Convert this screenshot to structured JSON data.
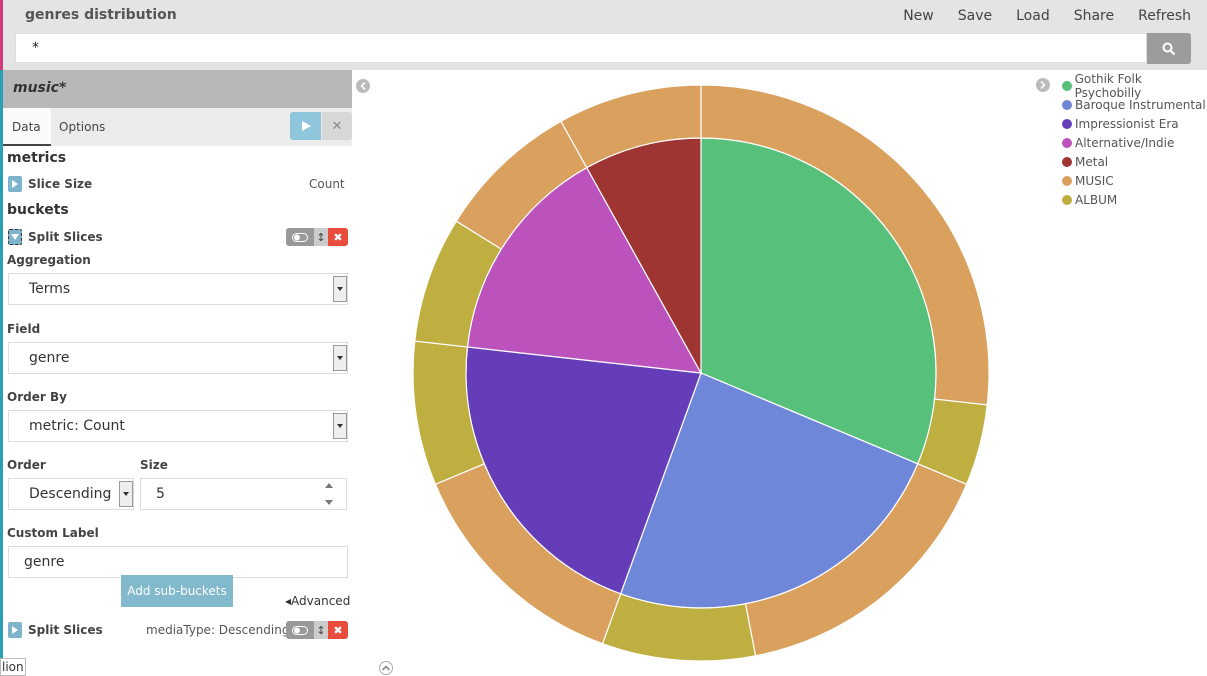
{
  "app_title": "genres distribution",
  "top_menu": [
    "New",
    "Save",
    "Load",
    "Share",
    "Refresh"
  ],
  "query": {
    "value": "*"
  },
  "vis": {
    "name": "music*",
    "tabs": [
      "Data",
      "Options"
    ]
  },
  "metrics": {
    "heading": "metrics",
    "item_label": "Slice Size",
    "item_value": "Count"
  },
  "buckets": {
    "heading": "buckets",
    "split_label": "Split Slices",
    "aggregation_label": "Aggregation",
    "aggregation_value": "Terms",
    "field_label": "Field",
    "field_value": "genre",
    "order_by_label": "Order By",
    "order_by_value": "metric: Count",
    "order_label": "Order",
    "order_value": "Descending",
    "size_label": "Size",
    "size_value": "5",
    "custom_label_label": "Custom Label",
    "custom_label_value": "genre",
    "advanced_label": "Advanced",
    "second_split_label": "Split Slices",
    "second_split_summary": "mediaType: Descending",
    "add_button": "Add sub-buckets"
  },
  "tooltip_text": "lion",
  "legend": [
    {
      "label": "Gothik Folk Psychobilly",
      "color": "#57c17b"
    },
    {
      "label": "Baroque Instrumental",
      "color": "#6f87d8"
    },
    {
      "label": "Impressionist Era",
      "color": "#663db8"
    },
    {
      "label": "Alternative/Indie",
      "color": "#bc52bc"
    },
    {
      "label": "Metal",
      "color": "#9e3533"
    },
    {
      "label": "MUSIC",
      "color": "#daa05d"
    },
    {
      "label": "ALBUM",
      "color": "#bfaf40"
    }
  ],
  "chart_data": {
    "type": "pie",
    "inner": {
      "categories": [
        "Gothik Folk Psychobilly",
        "Baroque Instrumental",
        "Impressionist Era",
        "Alternative/Indie",
        "Metal"
      ],
      "values": [
        31,
        24,
        21,
        15,
        8
      ],
      "colors": [
        "#57c17b",
        "#6f87d8",
        "#663db8",
        "#bc52bc",
        "#9e3533"
      ]
    },
    "outer": {
      "segments": [
        {
          "parent": "Gothik Folk Psychobilly",
          "label": "MUSIC",
          "value": 26.5
        },
        {
          "parent": "Gothik Folk Psychobilly",
          "label": "ALBUM",
          "value": 4.5
        },
        {
          "parent": "Baroque Instrumental",
          "label": "MUSIC",
          "value": 15.5
        },
        {
          "parent": "Baroque Instrumental",
          "label": "ALBUM",
          "value": 8.5
        },
        {
          "parent": "Impressionist Era",
          "label": "MUSIC",
          "value": 13
        },
        {
          "parent": "Impressionist Era",
          "label": "ALBUM",
          "value": 8
        },
        {
          "parent": "Alternative/Indie",
          "label": "ALBUM",
          "value": 7
        },
        {
          "parent": "Alternative/Indie",
          "label": "MUSIC",
          "value": 8
        },
        {
          "parent": "Metal",
          "label": "MUSIC",
          "value": 8
        }
      ],
      "colors": {
        "MUSIC": "#daa05d",
        "ALBUM": "#bfaf40"
      }
    }
  }
}
